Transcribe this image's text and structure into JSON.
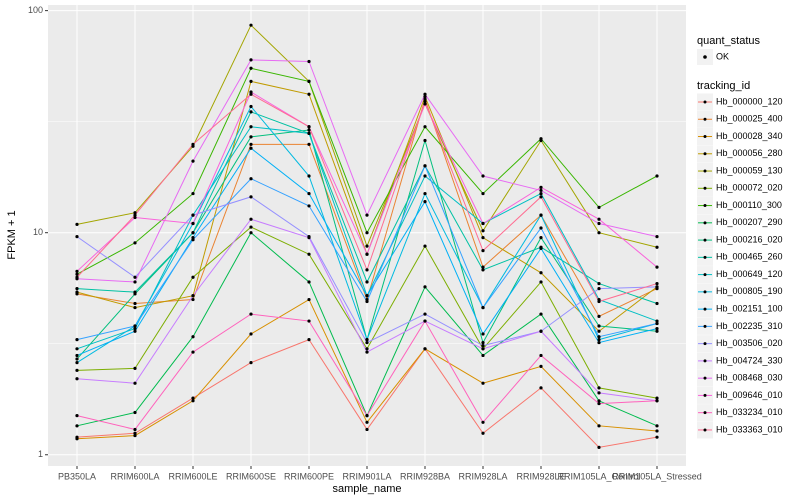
{
  "chart_data": {
    "type": "line",
    "log_y": true,
    "grid": true,
    "x_label": "sample_name",
    "y_label": "FPKM + 1",
    "categories": [
      "PB350LA",
      "RRIM600LA",
      "RRIM600LE",
      "RRIM600SE",
      "RRIM600PE",
      "RRIM901LA",
      "RRIM928BA",
      "RRIM928LA",
      "RRIM928LE",
      "RRIM105LA_Control",
      "RRIM105LA_Stressed"
    ],
    "ylim": [
      0.89,
      106
    ],
    "yticks": [
      1,
      10,
      100
    ],
    "shape_legend": {
      "title": "quant_status",
      "labels": [
        "OK"
      ]
    },
    "legend_title": "tracking_id",
    "series": [
      {
        "name": "Hb_000000_120",
        "color": "#F8766D",
        "values": [
          1.2,
          1.25,
          1.8,
          2.6,
          3.3,
          1.3,
          3.0,
          1.25,
          2.0,
          1.08,
          1.2
        ]
      },
      {
        "name": "Hb_000025_400",
        "color": "#EA8331",
        "values": [
          5.3,
          4.8,
          5.0,
          25,
          25,
          5.0,
          40,
          7,
          12,
          4.2,
          5.6
        ]
      },
      {
        "name": "Hb_000028_340",
        "color": "#D89000",
        "values": [
          1.18,
          1.22,
          1.75,
          3.5,
          5.0,
          1.4,
          3.0,
          2.1,
          2.5,
          1.35,
          1.28
        ]
      },
      {
        "name": "Hb_000056_280",
        "color": "#C09B00",
        "values": [
          5.4,
          4.6,
          5.2,
          48,
          42,
          8,
          41,
          9.5,
          6.6,
          3.6,
          5.7
        ]
      },
      {
        "name": "Hb_000059_130",
        "color": "#A3A500",
        "values": [
          10.9,
          12.3,
          24.5,
          86,
          48,
          8.7,
          38,
          10.2,
          26,
          10,
          8.6
        ]
      },
      {
        "name": "Hb_000072_020",
        "color": "#7CAE00",
        "values": [
          2.4,
          2.45,
          6.3,
          10.6,
          8.0,
          3.0,
          8.7,
          3.0,
          6.0,
          2.0,
          1.8
        ]
      },
      {
        "name": "Hb_000110_300",
        "color": "#39B600",
        "values": [
          6.5,
          9.0,
          15,
          55,
          48,
          10,
          30,
          15,
          26.5,
          13,
          18
        ]
      },
      {
        "name": "Hb_000207_290",
        "color": "#00BB4E",
        "values": [
          1.35,
          1.55,
          3.4,
          10,
          6.0,
          1.5,
          5.7,
          2.8,
          4.3,
          1.75,
          1.35
        ]
      },
      {
        "name": "Hb_000216_020",
        "color": "#00BF7D",
        "values": [
          2.7,
          5.3,
          10,
          27,
          29,
          3.3,
          26,
          3.2,
          9.5,
          3.8,
          3.6
        ]
      },
      {
        "name": "Hb_000465_260",
        "color": "#00C1A3",
        "values": [
          5.6,
          5.4,
          10,
          35,
          28,
          6,
          20,
          6.8,
          8.6,
          5.9,
          4.8
        ]
      },
      {
        "name": "Hb_000649_120",
        "color": "#00BFC4",
        "values": [
          3.0,
          3.7,
          12,
          30,
          28,
          5.2,
          18,
          11,
          15,
          5.0,
          4.0
        ]
      },
      {
        "name": "Hb_000805_190",
        "color": "#00BAE0",
        "values": [
          2.6,
          3.8,
          11,
          37,
          18,
          3.3,
          15,
          4.6,
          12,
          3.3,
          3.9
        ]
      },
      {
        "name": "Hb_002151_100",
        "color": "#00B0F6",
        "values": [
          2.8,
          3.6,
          9.5,
          24,
          15,
          5.2,
          13.8,
          3.5,
          8.5,
          3.2,
          3.7
        ]
      },
      {
        "name": "Hb_002235_310",
        "color": "#35A2FF",
        "values": [
          3.3,
          3.8,
          9.3,
          17.5,
          13.2,
          4.9,
          20,
          4.6,
          10.5,
          3.4,
          3.9
        ]
      },
      {
        "name": "Hb_003506_020",
        "color": "#9590FF",
        "values": [
          9.6,
          6.3,
          12,
          14.5,
          9.6,
          3.2,
          4.3,
          3.1,
          3.6,
          5.6,
          5.7
        ]
      },
      {
        "name": "Hb_004724_330",
        "color": "#C77CFF",
        "values": [
          2.2,
          2.1,
          5.2,
          11.5,
          9.5,
          2.9,
          4.0,
          3.0,
          3.6,
          1.9,
          1.75
        ]
      },
      {
        "name": "Hb_008468_030",
        "color": "#E76BF3",
        "values": [
          6.2,
          6.0,
          21,
          60,
          59,
          12,
          42,
          18,
          15.5,
          11,
          9.6
        ]
      },
      {
        "name": "Hb_009646_010",
        "color": "#FA62DB",
        "values": [
          6.7,
          11.7,
          11,
          43,
          30,
          8,
          38,
          11,
          16,
          11.5,
          7
        ]
      },
      {
        "name": "Hb_033234_010",
        "color": "#FF62BC",
        "values": [
          1.5,
          1.3,
          2.9,
          4.3,
          4.0,
          1.5,
          4.0,
          1.4,
          2.8,
          1.7,
          1.75
        ]
      },
      {
        "name": "Hb_033363_010",
        "color": "#FF6C91",
        "values": [
          6.3,
          12,
          25,
          42,
          30,
          6.8,
          39,
          8.3,
          14.5,
          4.9,
          5.9
        ]
      }
    ]
  }
}
